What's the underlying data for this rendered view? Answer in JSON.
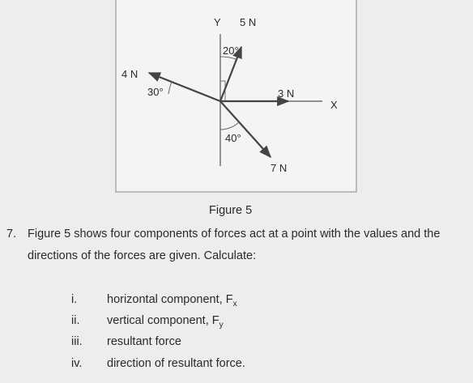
{
  "figure": {
    "y_axis": "Y",
    "x_axis": "X",
    "forces": [
      {
        "label": "5 N",
        "angle": "20°"
      },
      {
        "label": "4 N",
        "angle": "30°"
      },
      {
        "label": "3 N"
      },
      {
        "label": "7 N",
        "angle": "40°"
      }
    ],
    "caption": "Figure 5"
  },
  "question": {
    "number": "7.",
    "lines": [
      "Figure 5 shows four components of forces act at a point with the values and the",
      "directions of the forces are given. Calculate:"
    ],
    "items": [
      {
        "numeral": "i.",
        "text": "horizontal component, F",
        "subscript": "x"
      },
      {
        "numeral": "ii.",
        "text": "vertical component, F",
        "subscript": "y"
      },
      {
        "numeral": "iii.",
        "text": "resultant force"
      },
      {
        "numeral": "iv.",
        "text": "direction of resultant force."
      }
    ]
  }
}
